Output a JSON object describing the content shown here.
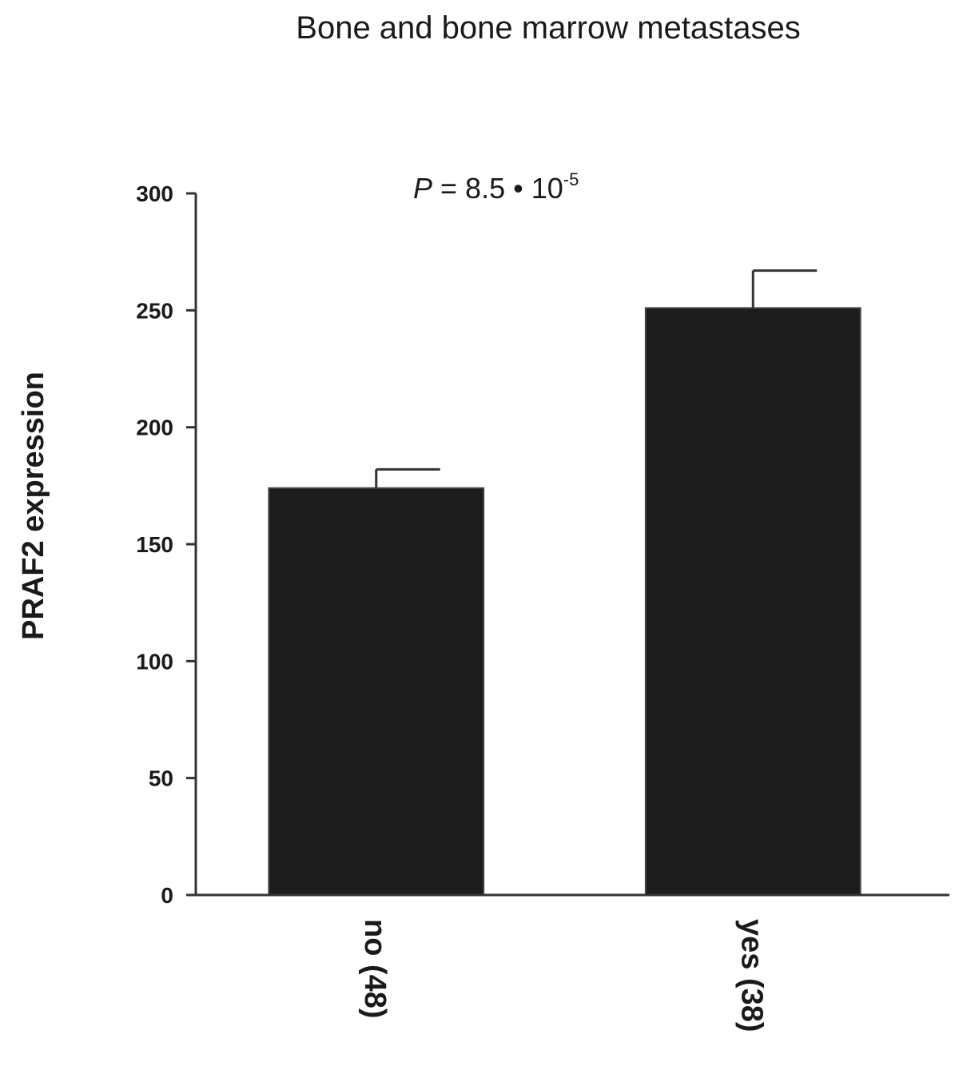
{
  "chart_data": {
    "type": "bar",
    "title": "Bone and bone marrow metastases",
    "annotation": {
      "italic": "P",
      "text": " = 8.5 • 10",
      "superscript": "-5"
    },
    "ylabel": "PRAF2 expression",
    "xlabel": "",
    "ylim": [
      0,
      300
    ],
    "yticks": [
      "0",
      "50",
      "100",
      "150",
      "200",
      "250",
      "300"
    ],
    "categories": [
      "no (48)",
      "yes (38)"
    ],
    "values": [
      174,
      251
    ],
    "errors": [
      8,
      16
    ],
    "bar_color": "#1c1c1c",
    "axis_color": "#333333",
    "grid": false
  }
}
